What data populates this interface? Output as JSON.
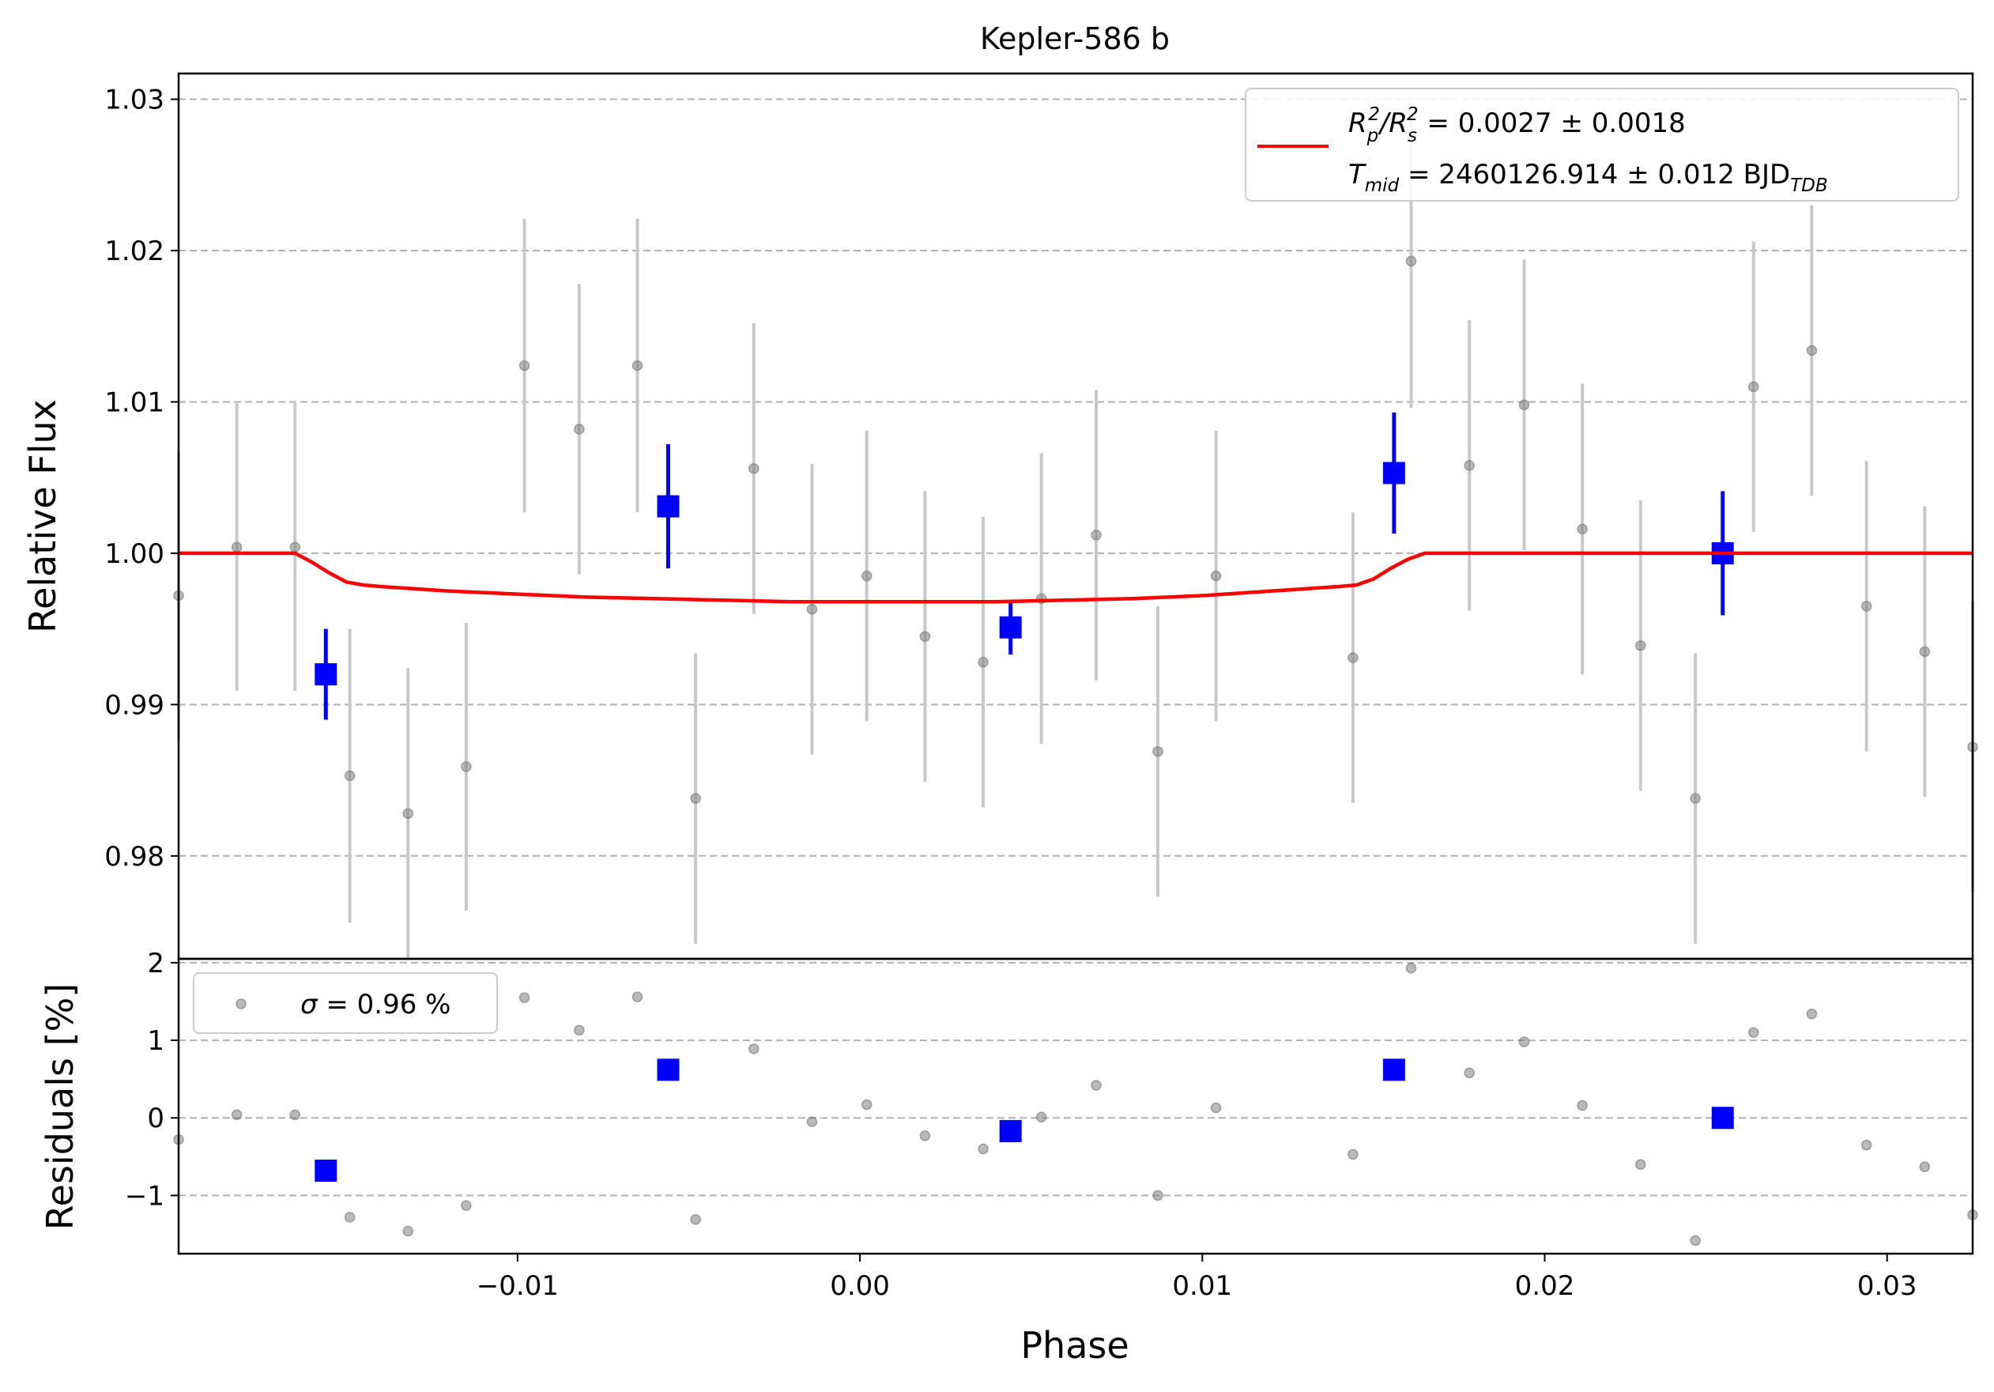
{
  "chart_data": [
    {
      "type": "scatter",
      "title": "Kepler-586 b",
      "xlabel": "",
      "ylabel": "Relative Flux",
      "xlim": [
        -0.0199,
        0.0325
      ],
      "ylim": [
        0.9732,
        1.0317
      ],
      "yticks": [
        0.98,
        0.99,
        1.0,
        1.01,
        1.02,
        1.03
      ],
      "ytick_labels": [
        "0.98",
        "0.99",
        "1.00",
        "1.01",
        "1.02",
        "1.03"
      ],
      "grid": "horizontal dashed",
      "legend": {
        "position": "top-right",
        "line1": {
          "prefix": "R",
          "sub1": "p",
          "sup1": "2",
          "mid": "/R",
          "sub2": "s",
          "sup2": "2",
          "value": " = 0.0027 ± 0.0018"
        },
        "line2": {
          "prefix": "T",
          "sub": "mid",
          "value": " = 2460126.914 ± 0.012 BJD",
          "unit_sub": "TDB"
        }
      },
      "colors": {
        "data": "#808080",
        "errorbar": "#c8c8c8",
        "binned": "#0000ff",
        "model": "#ff0000",
        "grid": "#b0b0b0"
      },
      "series": [
        {
          "kind": "unbinned",
          "x": [
            -0.0199,
            -0.0182,
            -0.0165,
            -0.0149,
            -0.0132,
            -0.0115,
            -0.0098,
            -0.0082,
            -0.0065,
            -0.0048,
            -0.0031,
            -0.0014,
            0.0002,
            0.0019,
            0.0036,
            0.0053,
            0.0069,
            0.0087,
            0.0104,
            0.0144,
            0.0161,
            0.0178,
            0.0194,
            0.0211,
            0.0228,
            0.0244,
            0.0261,
            0.0278,
            0.0294,
            0.0311,
            0.0325
          ],
          "y": [
            0.9972,
            1.0004,
            1.0004,
            0.9853,
            0.9828,
            0.9859,
            1.0124,
            1.0082,
            1.0124,
            0.9838,
            1.0056,
            0.9963,
            0.9985,
            0.9945,
            0.9928,
            0.997,
            1.0012,
            0.9869,
            0.9985,
            0.9931,
            1.0193,
            1.0058,
            1.0098,
            1.0016,
            0.9939,
            0.9838,
            1.011,
            1.0134,
            0.9965,
            0.9935,
            0.9872
          ],
          "yerr": [
            0.0095,
            0.0095,
            0.0095,
            0.0097,
            0.0096,
            0.0095,
            0.0097,
            0.0096,
            0.0097,
            0.0096,
            0.0096,
            0.0096,
            0.0096,
            0.0096,
            0.0096,
            0.0096,
            0.0096,
            0.0096,
            0.0096,
            0.0096,
            0.0097,
            0.0096,
            0.0096,
            0.0096,
            0.0096,
            0.0096,
            0.0096,
            0.0096,
            0.0096,
            0.0096,
            0.0096
          ]
        },
        {
          "kind": "binned",
          "x": [
            -0.0156,
            -0.0056,
            0.0044,
            0.0156,
            0.0252
          ],
          "y": [
            0.992,
            1.0031,
            0.9951,
            1.0053,
            1.0
          ],
          "yerr": [
            0.003,
            0.0041,
            0.0018,
            0.004,
            0.0041
          ]
        },
        {
          "kind": "model",
          "x": [
            -0.0199,
            -0.0165,
            -0.016,
            -0.0155,
            -0.015,
            -0.0145,
            -0.014,
            -0.012,
            -0.01,
            -0.008,
            -0.006,
            -0.004,
            -0.002,
            0.0,
            0.002,
            0.004,
            0.006,
            0.008,
            0.01,
            0.012,
            0.014,
            0.0145,
            0.015,
            0.0155,
            0.016,
            0.0165,
            0.0325
          ],
          "y": [
            1.0,
            1.0,
            0.9994,
            0.9987,
            0.9981,
            0.9979,
            0.9978,
            0.9975,
            0.9973,
            0.9971,
            0.997,
            0.9969,
            0.9968,
            0.9968,
            0.9968,
            0.9968,
            0.9969,
            0.997,
            0.9972,
            0.9975,
            0.9978,
            0.9979,
            0.9983,
            0.999,
            0.9996,
            1.0,
            1.0
          ]
        }
      ]
    },
    {
      "type": "scatter",
      "xlabel": "Phase",
      "ylabel": "Residuals [%]",
      "xlim": [
        -0.0199,
        0.0325
      ],
      "ylim": [
        -1.75,
        2.05
      ],
      "xticks": [
        -0.01,
        0.0,
        0.01,
        0.02,
        0.03
      ],
      "xtick_labels": [
        "−0.01",
        "0.00",
        "0.01",
        "0.02",
        "0.03"
      ],
      "yticks": [
        -1,
        0,
        1,
        2
      ],
      "ytick_labels": [
        "−1",
        "0",
        "1",
        "2"
      ],
      "grid": "horizontal dashed",
      "legend": {
        "position": "top-left",
        "sigma_symbol": "σ",
        "sigma_text": " = 0.96 %"
      },
      "series": [
        {
          "kind": "unbinned",
          "x": [
            -0.0199,
            -0.0182,
            -0.0165,
            -0.0149,
            -0.0132,
            -0.0115,
            -0.0098,
            -0.0082,
            -0.0065,
            -0.0048,
            -0.0031,
            -0.0014,
            0.0002,
            0.0019,
            0.0036,
            0.0053,
            0.0069,
            0.0087,
            0.0104,
            0.0144,
            0.0161,
            0.0178,
            0.0194,
            0.0211,
            0.0228,
            0.0244,
            0.0261,
            0.0278,
            0.0294,
            0.0311,
            0.0325
          ],
          "y": [
            -0.28,
            0.04,
            0.04,
            -1.28,
            -1.46,
            -1.13,
            1.55,
            1.13,
            1.56,
            -1.31,
            0.89,
            -0.05,
            0.17,
            -0.23,
            -0.4,
            0.01,
            0.42,
            -1.0,
            0.13,
            -0.47,
            1.93,
            0.58,
            0.98,
            0.16,
            -0.6,
            -1.58,
            1.1,
            1.34,
            -0.35,
            -0.63,
            -1.25
          ]
        },
        {
          "kind": "binned",
          "x": [
            -0.0156,
            -0.0056,
            0.0044,
            0.0156,
            0.0252
          ],
          "y": [
            -0.68,
            0.62,
            -0.17,
            0.62,
            0.0
          ]
        }
      ]
    }
  ]
}
